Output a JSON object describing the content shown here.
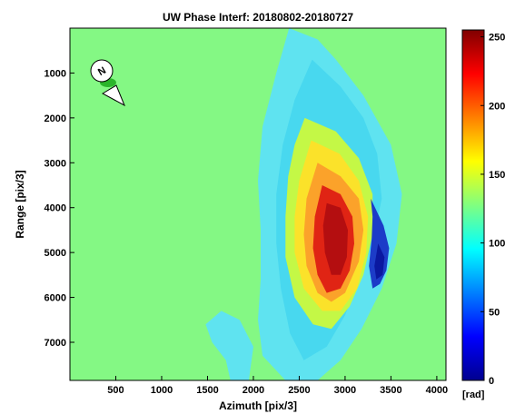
{
  "chart_data": {
    "type": "heatmap",
    "title": "UW Phase Interf: 20180802-20180727",
    "xlabel": "Azimuth [pix/3]",
    "ylabel": "Range [pix/3]",
    "xlim": [
      0,
      4100
    ],
    "ylim": [
      7850,
      0
    ],
    "y_reversed": true,
    "x_ticks": [
      500,
      1000,
      1500,
      2000,
      2500,
      3000,
      3500,
      4000
    ],
    "x_tick_labels": [
      "500",
      "1000",
      "1500",
      "2000",
      "2500",
      "3000",
      "3500",
      "4000"
    ],
    "y_ticks": [
      1000,
      2000,
      3000,
      4000,
      5000,
      6000,
      7000
    ],
    "y_tick_labels": [
      "1000",
      "2000",
      "3000",
      "4000",
      "5000",
      "6000",
      "7000"
    ],
    "colormap": "jet",
    "background_color": "#84f884",
    "colorbar": {
      "min": 0,
      "max": 255,
      "ticks": [
        0,
        50,
        100,
        150,
        200,
        250
      ],
      "tick_labels": [
        "0",
        "50",
        "100",
        "150",
        "200",
        "250"
      ],
      "unit_label": "[rad]"
    },
    "north_arrow": {
      "label": "N"
    },
    "regions": [
      {
        "name": "outer-cyan-halo",
        "value": 115,
        "color": "#5fe3f0",
        "outline": [
          [
            2390,
            0
          ],
          [
            2700,
            250
          ],
          [
            2900,
            700
          ],
          [
            3200,
            1500
          ],
          [
            3500,
            2600
          ],
          [
            3620,
            3700
          ],
          [
            3560,
            4800
          ],
          [
            3400,
            5800
          ],
          [
            3180,
            6700
          ],
          [
            2950,
            7400
          ],
          [
            2700,
            7850
          ],
          [
            2350,
            7850
          ],
          [
            2100,
            7300
          ],
          [
            2050,
            6500
          ],
          [
            2080,
            5600
          ],
          [
            2080,
            4500
          ],
          [
            2050,
            3400
          ],
          [
            2100,
            2200
          ],
          [
            2250,
            1000
          ]
        ]
      },
      {
        "name": "lower-left-cyan-patch",
        "value": 110,
        "color": "#5fe3f0",
        "outline": [
          [
            1650,
            6300
          ],
          [
            1850,
            6500
          ],
          [
            2000,
            7100
          ],
          [
            1950,
            7850
          ],
          [
            1750,
            7850
          ],
          [
            1700,
            7400
          ],
          [
            1550,
            7000
          ],
          [
            1480,
            6600
          ]
        ]
      },
      {
        "name": "inner-cyan-band",
        "value": 118,
        "color": "#48d8ef",
        "outline": [
          [
            2640,
            700
          ],
          [
            2950,
            1300
          ],
          [
            3200,
            2000
          ],
          [
            3350,
            2800
          ],
          [
            3400,
            3800
          ],
          [
            3300,
            4800
          ],
          [
            3150,
            5600
          ],
          [
            3000,
            6400
          ],
          [
            2800,
            7100
          ],
          [
            2550,
            7400
          ],
          [
            2400,
            6800
          ],
          [
            2300,
            5800
          ],
          [
            2250,
            4800
          ],
          [
            2250,
            3700
          ],
          [
            2320,
            2600
          ],
          [
            2450,
            1600
          ]
        ]
      },
      {
        "name": "yellow-green-zone",
        "value": 140,
        "color": "#c4f846",
        "outline": [
          [
            2560,
            2000
          ],
          [
            2900,
            2300
          ],
          [
            3150,
            2900
          ],
          [
            3300,
            3700
          ],
          [
            3300,
            4600
          ],
          [
            3200,
            5500
          ],
          [
            3050,
            6200
          ],
          [
            2850,
            6700
          ],
          [
            2650,
            6600
          ],
          [
            2450,
            6000
          ],
          [
            2350,
            5100
          ],
          [
            2350,
            4200
          ],
          [
            2380,
            3300
          ],
          [
            2450,
            2600
          ]
        ]
      },
      {
        "name": "yellow-zone",
        "value": 160,
        "color": "#fbe22a",
        "outline": [
          [
            2630,
            2500
          ],
          [
            2940,
            2800
          ],
          [
            3150,
            3400
          ],
          [
            3250,
            4200
          ],
          [
            3230,
            5000
          ],
          [
            3130,
            5800
          ],
          [
            2950,
            6300
          ],
          [
            2750,
            6300
          ],
          [
            2550,
            5800
          ],
          [
            2450,
            5000
          ],
          [
            2450,
            4200
          ],
          [
            2500,
            3400
          ]
        ]
      },
      {
        "name": "orange-zone",
        "value": 190,
        "color": "#fba22a",
        "outline": [
          [
            2700,
            3000
          ],
          [
            2950,
            3300
          ],
          [
            3150,
            3800
          ],
          [
            3200,
            4500
          ],
          [
            3150,
            5200
          ],
          [
            3000,
            5900
          ],
          [
            2850,
            6100
          ],
          [
            2700,
            5900
          ],
          [
            2580,
            5300
          ],
          [
            2550,
            4600
          ],
          [
            2580,
            3800
          ]
        ]
      },
      {
        "name": "red-core",
        "value": 235,
        "color": "#e02414",
        "outline": [
          [
            2750,
            3500
          ],
          [
            2950,
            3700
          ],
          [
            3080,
            4200
          ],
          [
            3100,
            4800
          ],
          [
            3050,
            5400
          ],
          [
            2950,
            5800
          ],
          [
            2800,
            5900
          ],
          [
            2700,
            5500
          ],
          [
            2650,
            4900
          ],
          [
            2670,
            4200
          ]
        ]
      },
      {
        "name": "deep-red-center",
        "value": 250,
        "color": "#b40e10",
        "outline": [
          [
            2800,
            3900
          ],
          [
            2950,
            4000
          ],
          [
            3030,
            4500
          ],
          [
            3020,
            5100
          ],
          [
            2950,
            5500
          ],
          [
            2850,
            5500
          ],
          [
            2780,
            5000
          ],
          [
            2760,
            4400
          ]
        ]
      },
      {
        "name": "blue-edge",
        "value": 55,
        "color": "#1c3cc8",
        "outline": [
          [
            3280,
            3800
          ],
          [
            3420,
            4400
          ],
          [
            3480,
            4900
          ],
          [
            3450,
            5400
          ],
          [
            3380,
            5700
          ],
          [
            3300,
            5800
          ],
          [
            3260,
            5300
          ],
          [
            3290,
            4700
          ],
          [
            3300,
            4200
          ]
        ]
      },
      {
        "name": "deep-blue-edge",
        "value": 25,
        "color": "#0a18a0",
        "outline": [
          [
            3360,
            4800
          ],
          [
            3430,
            5100
          ],
          [
            3410,
            5500
          ],
          [
            3340,
            5600
          ],
          [
            3320,
            5300
          ]
        ]
      }
    ]
  }
}
